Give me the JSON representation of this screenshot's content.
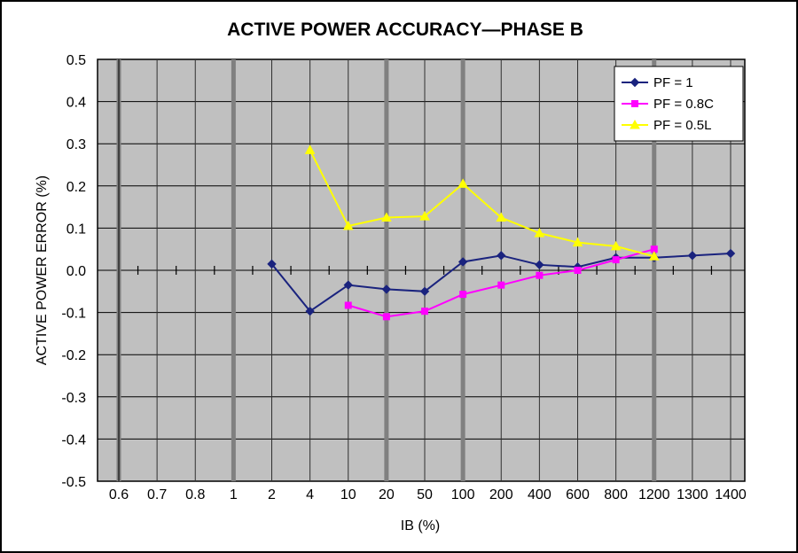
{
  "chart_data": {
    "type": "line",
    "title": "ACTIVE POWER ACCURACY—PHASE B",
    "xlabel": "IB (%)",
    "ylabel": "ACTIVE POWER ERROR (%)",
    "categories": [
      "0.6",
      "0.7",
      "0.8",
      "1",
      "2",
      "4",
      "10",
      "20",
      "50",
      "100",
      "200",
      "400",
      "600",
      "800",
      "1200",
      "1300",
      "1400"
    ],
    "yticks": [
      "0.5",
      "0.4",
      "0.3",
      "0.2",
      "0.1",
      "0.0",
      "-0.1",
      "-0.2",
      "-0.3",
      "-0.4",
      "-0.5"
    ],
    "ylim": [
      -0.5,
      0.5
    ],
    "grid": true,
    "legend_position": "top-right",
    "series": [
      {
        "name": "PF = 1",
        "color": "#1a237e",
        "marker": "diamond",
        "x": [
          "2",
          "4",
          "10",
          "20",
          "50",
          "100",
          "200",
          "400",
          "600",
          "800",
          "1200",
          "1300",
          "1400"
        ],
        "values": [
          0.015,
          -0.097,
          -0.035,
          -0.045,
          -0.05,
          0.02,
          0.035,
          0.013,
          0.008,
          0.03,
          0.03,
          0.035,
          0.04
        ]
      },
      {
        "name": "PF = 0.8C",
        "color": "#ff00ff",
        "marker": "square",
        "x": [
          "10",
          "20",
          "50",
          "100",
          "200",
          "400",
          "600",
          "800",
          "1200"
        ],
        "values": [
          -0.083,
          -0.11,
          -0.097,
          -0.057,
          -0.035,
          -0.012,
          0.0,
          0.025,
          0.05
        ]
      },
      {
        "name": "PF = 0.5L",
        "color": "#ffff00",
        "marker": "triangle",
        "x": [
          "4",
          "10",
          "20",
          "50",
          "100",
          "200",
          "400",
          "600",
          "800",
          "1200"
        ],
        "values": [
          0.285,
          0.105,
          0.125,
          0.128,
          0.205,
          0.125,
          0.088,
          0.066,
          0.057,
          0.033
        ]
      }
    ]
  }
}
